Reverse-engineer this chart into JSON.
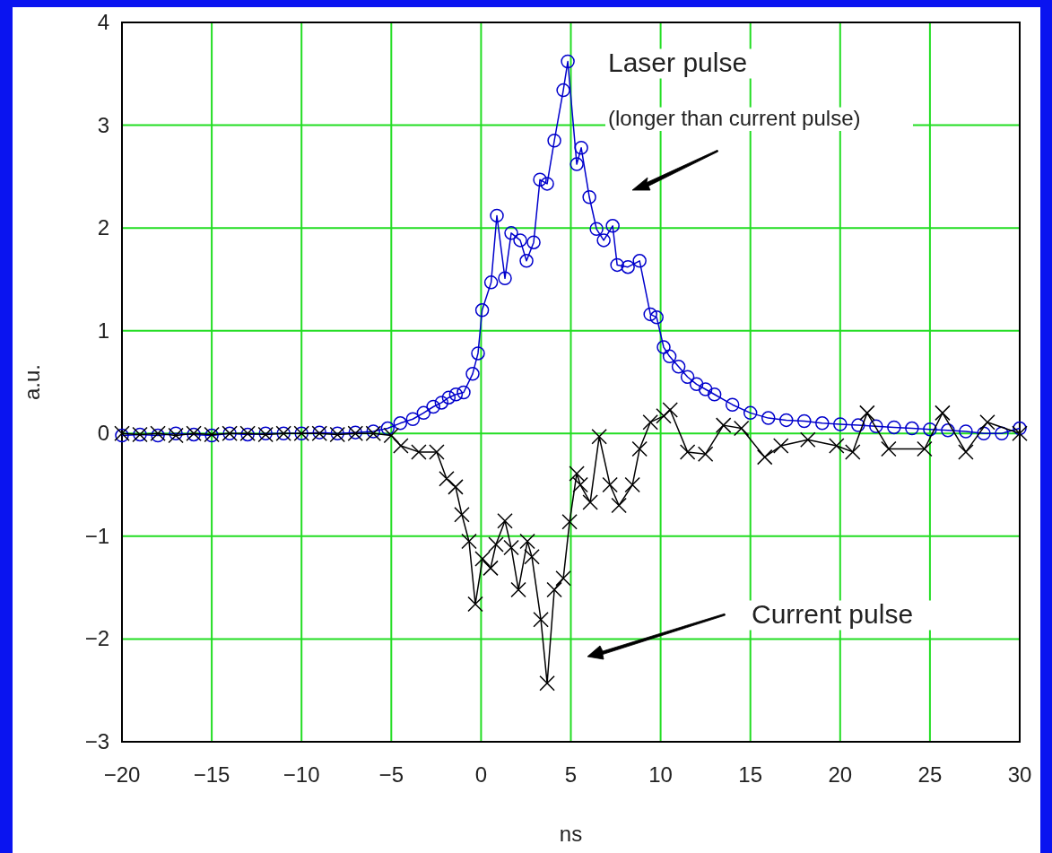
{
  "chart_data": {
    "type": "line",
    "xlabel": "ns",
    "ylabel": "a.u.",
    "xlim": [
      -20,
      30
    ],
    "ylim": [
      -3,
      4
    ],
    "xticks": [
      -20,
      -15,
      -10,
      -5,
      0,
      5,
      10,
      15,
      20,
      25,
      30
    ],
    "yticks": [
      -3,
      -2,
      -1,
      0,
      1,
      2,
      3,
      4
    ],
    "grid": true,
    "line_style": "solid",
    "annotations": [
      "Laser pulse",
      "(longer than current pulse)",
      "Current pulse"
    ],
    "series": [
      {
        "color": "#0000cc",
        "marker": "circle",
        "x": [
          -20,
          -19,
          -18,
          -17,
          -16,
          -15,
          -14,
          -13,
          -12,
          -11,
          -10,
          -9,
          -8,
          -7,
          -6,
          -5.2,
          -4.5,
          -3.8,
          -3.2,
          -2.66,
          -2.2,
          -1.8,
          -1.4,
          -0.97,
          -0.47,
          -0.17,
          0.06,
          0.56,
          0.88,
          1.33,
          1.68,
          2.18,
          2.53,
          2.93,
          3.28,
          3.68,
          4.08,
          4.58,
          4.83,
          5.33,
          5.58,
          6.03,
          6.43,
          6.83,
          7.33,
          7.58,
          8.18,
          8.83,
          9.43,
          9.78,
          10.17,
          10.5,
          11,
          11.5,
          12,
          12.5,
          13,
          14,
          15,
          16,
          17,
          18,
          19,
          20,
          21,
          22,
          23,
          24,
          25,
          26,
          27,
          28,
          29,
          30
        ],
        "values": [
          -0.02,
          -0.01,
          -0.02,
          0,
          -0.01,
          -0.02,
          0,
          -0.01,
          0,
          0,
          0,
          0.01,
          0,
          0.01,
          0.02,
          0.05,
          0.1,
          0.14,
          0.2,
          0.26,
          0.3,
          0.35,
          0.38,
          0.4,
          0.58,
          0.78,
          1.2,
          1.47,
          2.12,
          1.51,
          1.95,
          1.88,
          1.68,
          1.86,
          2.47,
          2.43,
          2.85,
          3.34,
          3.62,
          2.62,
          2.78,
          2.3,
          1.99,
          1.88,
          2.02,
          1.64,
          1.62,
          1.68,
          1.16,
          1.13,
          0.84,
          0.75,
          0.65,
          0.55,
          0.48,
          0.43,
          0.38,
          0.28,
          0.2,
          0.15,
          0.13,
          0.12,
          0.1,
          0.09,
          0.08,
          0.07,
          0.06,
          0.05,
          0.04,
          0.03,
          0.02,
          0,
          0,
          0.05
        ]
      },
      {
        "color": "#000000",
        "marker": "cross",
        "x": [
          -20,
          -19,
          -18,
          -17,
          -16,
          -15,
          -14,
          -13,
          -12,
          -11,
          -10,
          -9,
          -8,
          -7,
          -6,
          -5,
          -4.47,
          -3.47,
          -2.47,
          -1.92,
          -1.42,
          -1.07,
          -0.67,
          -0.32,
          0.08,
          0.53,
          0.83,
          1.33,
          1.68,
          2.08,
          2.58,
          2.83,
          3.33,
          3.68,
          4.08,
          4.58,
          4.93,
          5.33,
          5.53,
          6.08,
          6.58,
          7.18,
          7.68,
          8.43,
          8.83,
          9.43,
          10.17,
          10.53,
          11.5,
          12.5,
          13.5,
          14.5,
          15.8,
          16.7,
          18.2,
          19.8,
          20.7,
          21.5,
          22.7,
          24.7,
          25.7,
          27,
          28.2,
          30
        ],
        "values": [
          0,
          -0.01,
          0,
          -0.02,
          0,
          -0.01,
          0,
          0,
          -0.01,
          0,
          0,
          0,
          -0.01,
          0,
          0,
          -0.02,
          -0.12,
          -0.18,
          -0.18,
          -0.44,
          -0.52,
          -0.79,
          -1.05,
          -1.66,
          -1.22,
          -1.31,
          -1.08,
          -0.85,
          -1.11,
          -1.52,
          -1.05,
          -1.2,
          -1.81,
          -2.43,
          -1.52,
          -1.41,
          -0.86,
          -0.39,
          -0.5,
          -0.67,
          -0.03,
          -0.5,
          -0.7,
          -0.5,
          -0.15,
          0.11,
          0.17,
          0.23,
          -0.18,
          -0.2,
          0.08,
          0.05,
          -0.23,
          -0.12,
          -0.06,
          -0.12,
          -0.18,
          0.2,
          -0.15,
          -0.15,
          0.2,
          -0.18,
          0.11,
          0
        ]
      }
    ]
  }
}
